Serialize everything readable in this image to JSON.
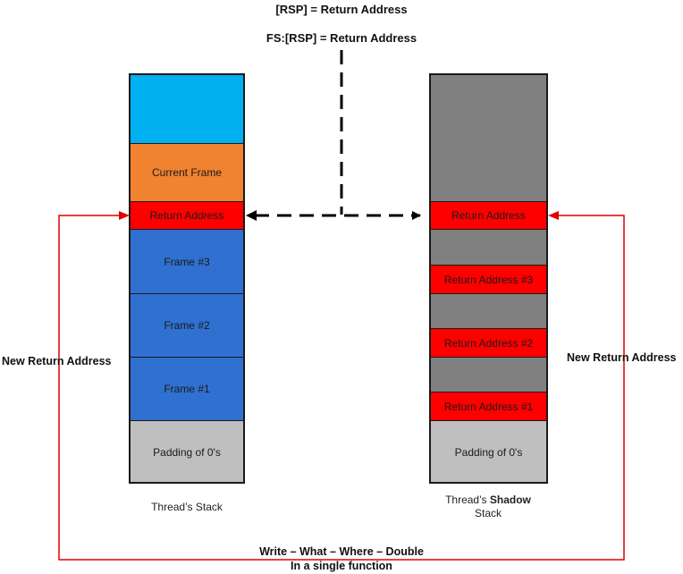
{
  "top_labels": {
    "rsp": "[RSP] = Return Address",
    "fs_rsp": "FS:[RSP] = Return Address"
  },
  "thread_stack": {
    "current_frame": "Current Frame",
    "return_address": "Return Address",
    "frame3": "Frame #3",
    "frame2": "Frame #2",
    "frame1": "Frame #1",
    "padding": "Padding of 0's",
    "caption": "Thread’s Stack"
  },
  "shadow_stack": {
    "return_address": "Return Address",
    "return_address3": "Return Address #3",
    "return_address2": "Return Address #2",
    "return_address1": "Return Address #1",
    "padding": "Padding of 0's",
    "caption_prefix": "Thread’s ",
    "caption_bold": "Shadow",
    "caption_line2": "Stack"
  },
  "side_labels": {
    "left": "New Return Address",
    "right": "New Return Address"
  },
  "bottom_label": {
    "line1": "Write – What – Where – Double",
    "line2": "In a single function"
  },
  "colors": {
    "cyan": "#00b0f0",
    "orange": "#f08230",
    "red": "#ff0000",
    "blue": "#3070d0",
    "gray_dark": "#808080",
    "gray_light": "#bfbfbf",
    "arrow_red": "#e00000"
  }
}
